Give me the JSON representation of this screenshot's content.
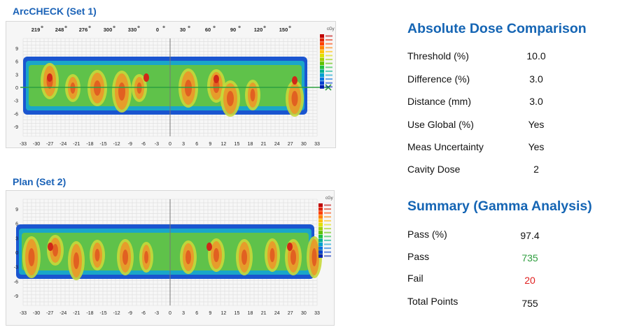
{
  "set1": {
    "title": "ArcCHECK (Set 1)",
    "angle_labels": [
      "219",
      "248",
      "276",
      "300",
      "330",
      "0",
      "30",
      "60",
      "90",
      "120",
      "150"
    ],
    "degree_symbol": "o",
    "y_ticks": [
      "9",
      "6",
      "3",
      "0",
      "-3",
      "-6",
      "-9"
    ],
    "x_ticks": [
      "-33",
      "-30",
      "-27",
      "-24",
      "-21",
      "-18",
      "-15",
      "-12",
      "-9",
      "-6",
      "-3",
      "0",
      "3",
      "6",
      "9",
      "12",
      "15",
      "18",
      "21",
      "24",
      "27",
      "30",
      "33"
    ],
    "legend_unit": "cGy"
  },
  "set2": {
    "title": "Plan (Set 2)",
    "y_ticks": [
      "9",
      "6",
      "3",
      "0",
      "-3",
      "-6",
      "-9"
    ],
    "x_ticks": [
      "-33",
      "-30",
      "-27",
      "-24",
      "-21",
      "-18",
      "-15",
      "-12",
      "-9",
      "-6",
      "-3",
      "0",
      "3",
      "6",
      "9",
      "12",
      "15",
      "18",
      "21",
      "24",
      "27",
      "30",
      "33"
    ],
    "legend_unit": "cGy"
  },
  "colormap": [
    "#c00000",
    "#e02000",
    "#ff4000",
    "#ff8000",
    "#ffc000",
    "#e0e000",
    "#a0d000",
    "#60c000",
    "#20c040",
    "#00b090",
    "#00a0d0",
    "#0070e0",
    "#0040d0",
    "#0020b0"
  ],
  "absolute": {
    "heading": "Absolute Dose Comparison",
    "rows": [
      {
        "label": "Threshold (%)",
        "value": "10.0"
      },
      {
        "label": "Difference (%)",
        "value": "3.0"
      },
      {
        "label": "Distance (mm)",
        "value": "3.0"
      },
      {
        "label": "Use Global (%)",
        "value": "Yes"
      },
      {
        "label": "Meas Uncertainty",
        "value": "Yes"
      },
      {
        "label": "Cavity Dose",
        "value": "2"
      }
    ]
  },
  "summary": {
    "heading": "Summary (Gamma Analysis)",
    "rows": [
      {
        "label": "Pass (%)",
        "value": "97.4",
        "color": "#111111"
      },
      {
        "label": "Pass",
        "value": "735",
        "color": "#2e9e3e"
      },
      {
        "label": "Fail",
        "value": "20",
        "color": "#e02020"
      },
      {
        "label": "Total Points",
        "value": "755",
        "color": "#111111"
      }
    ]
  }
}
